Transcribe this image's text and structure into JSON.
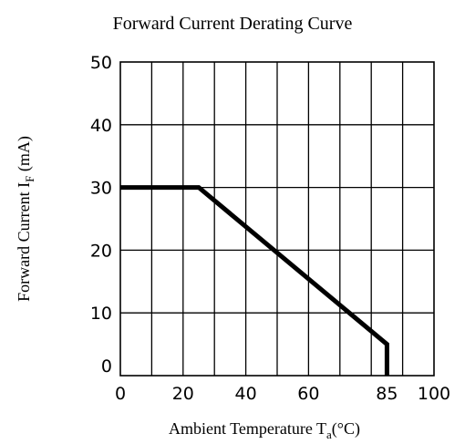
{
  "chart_data": {
    "type": "line",
    "title": "Forward Current Derating Curve",
    "xlabel": {
      "prefix": "Ambient Temperature T",
      "subscript": "a",
      "suffix": "(°C)"
    },
    "ylabel": {
      "prefix": "Forward Current   I",
      "subscript": "F",
      "suffix": " (mA)"
    },
    "xlim": [
      0,
      100
    ],
    "ylim": [
      0,
      50
    ],
    "x_ticks": [
      "0",
      "20",
      "40",
      "60",
      "85",
      "100"
    ],
    "x_tick_values": [
      0,
      20,
      40,
      60,
      85,
      100
    ],
    "y_ticks": [
      "0",
      "10",
      "20",
      "30",
      "40",
      "50"
    ],
    "y_tick_values": [
      0,
      10,
      20,
      30,
      40,
      50
    ],
    "grid": true,
    "grid_x_step": 10,
    "grid_y_step": 10,
    "series": [
      {
        "x": [
          0,
          25,
          85,
          85
        ],
        "y": [
          30,
          30,
          5,
          0
        ]
      }
    ],
    "colors": {
      "line": "#000000",
      "grid": "#000000"
    }
  }
}
